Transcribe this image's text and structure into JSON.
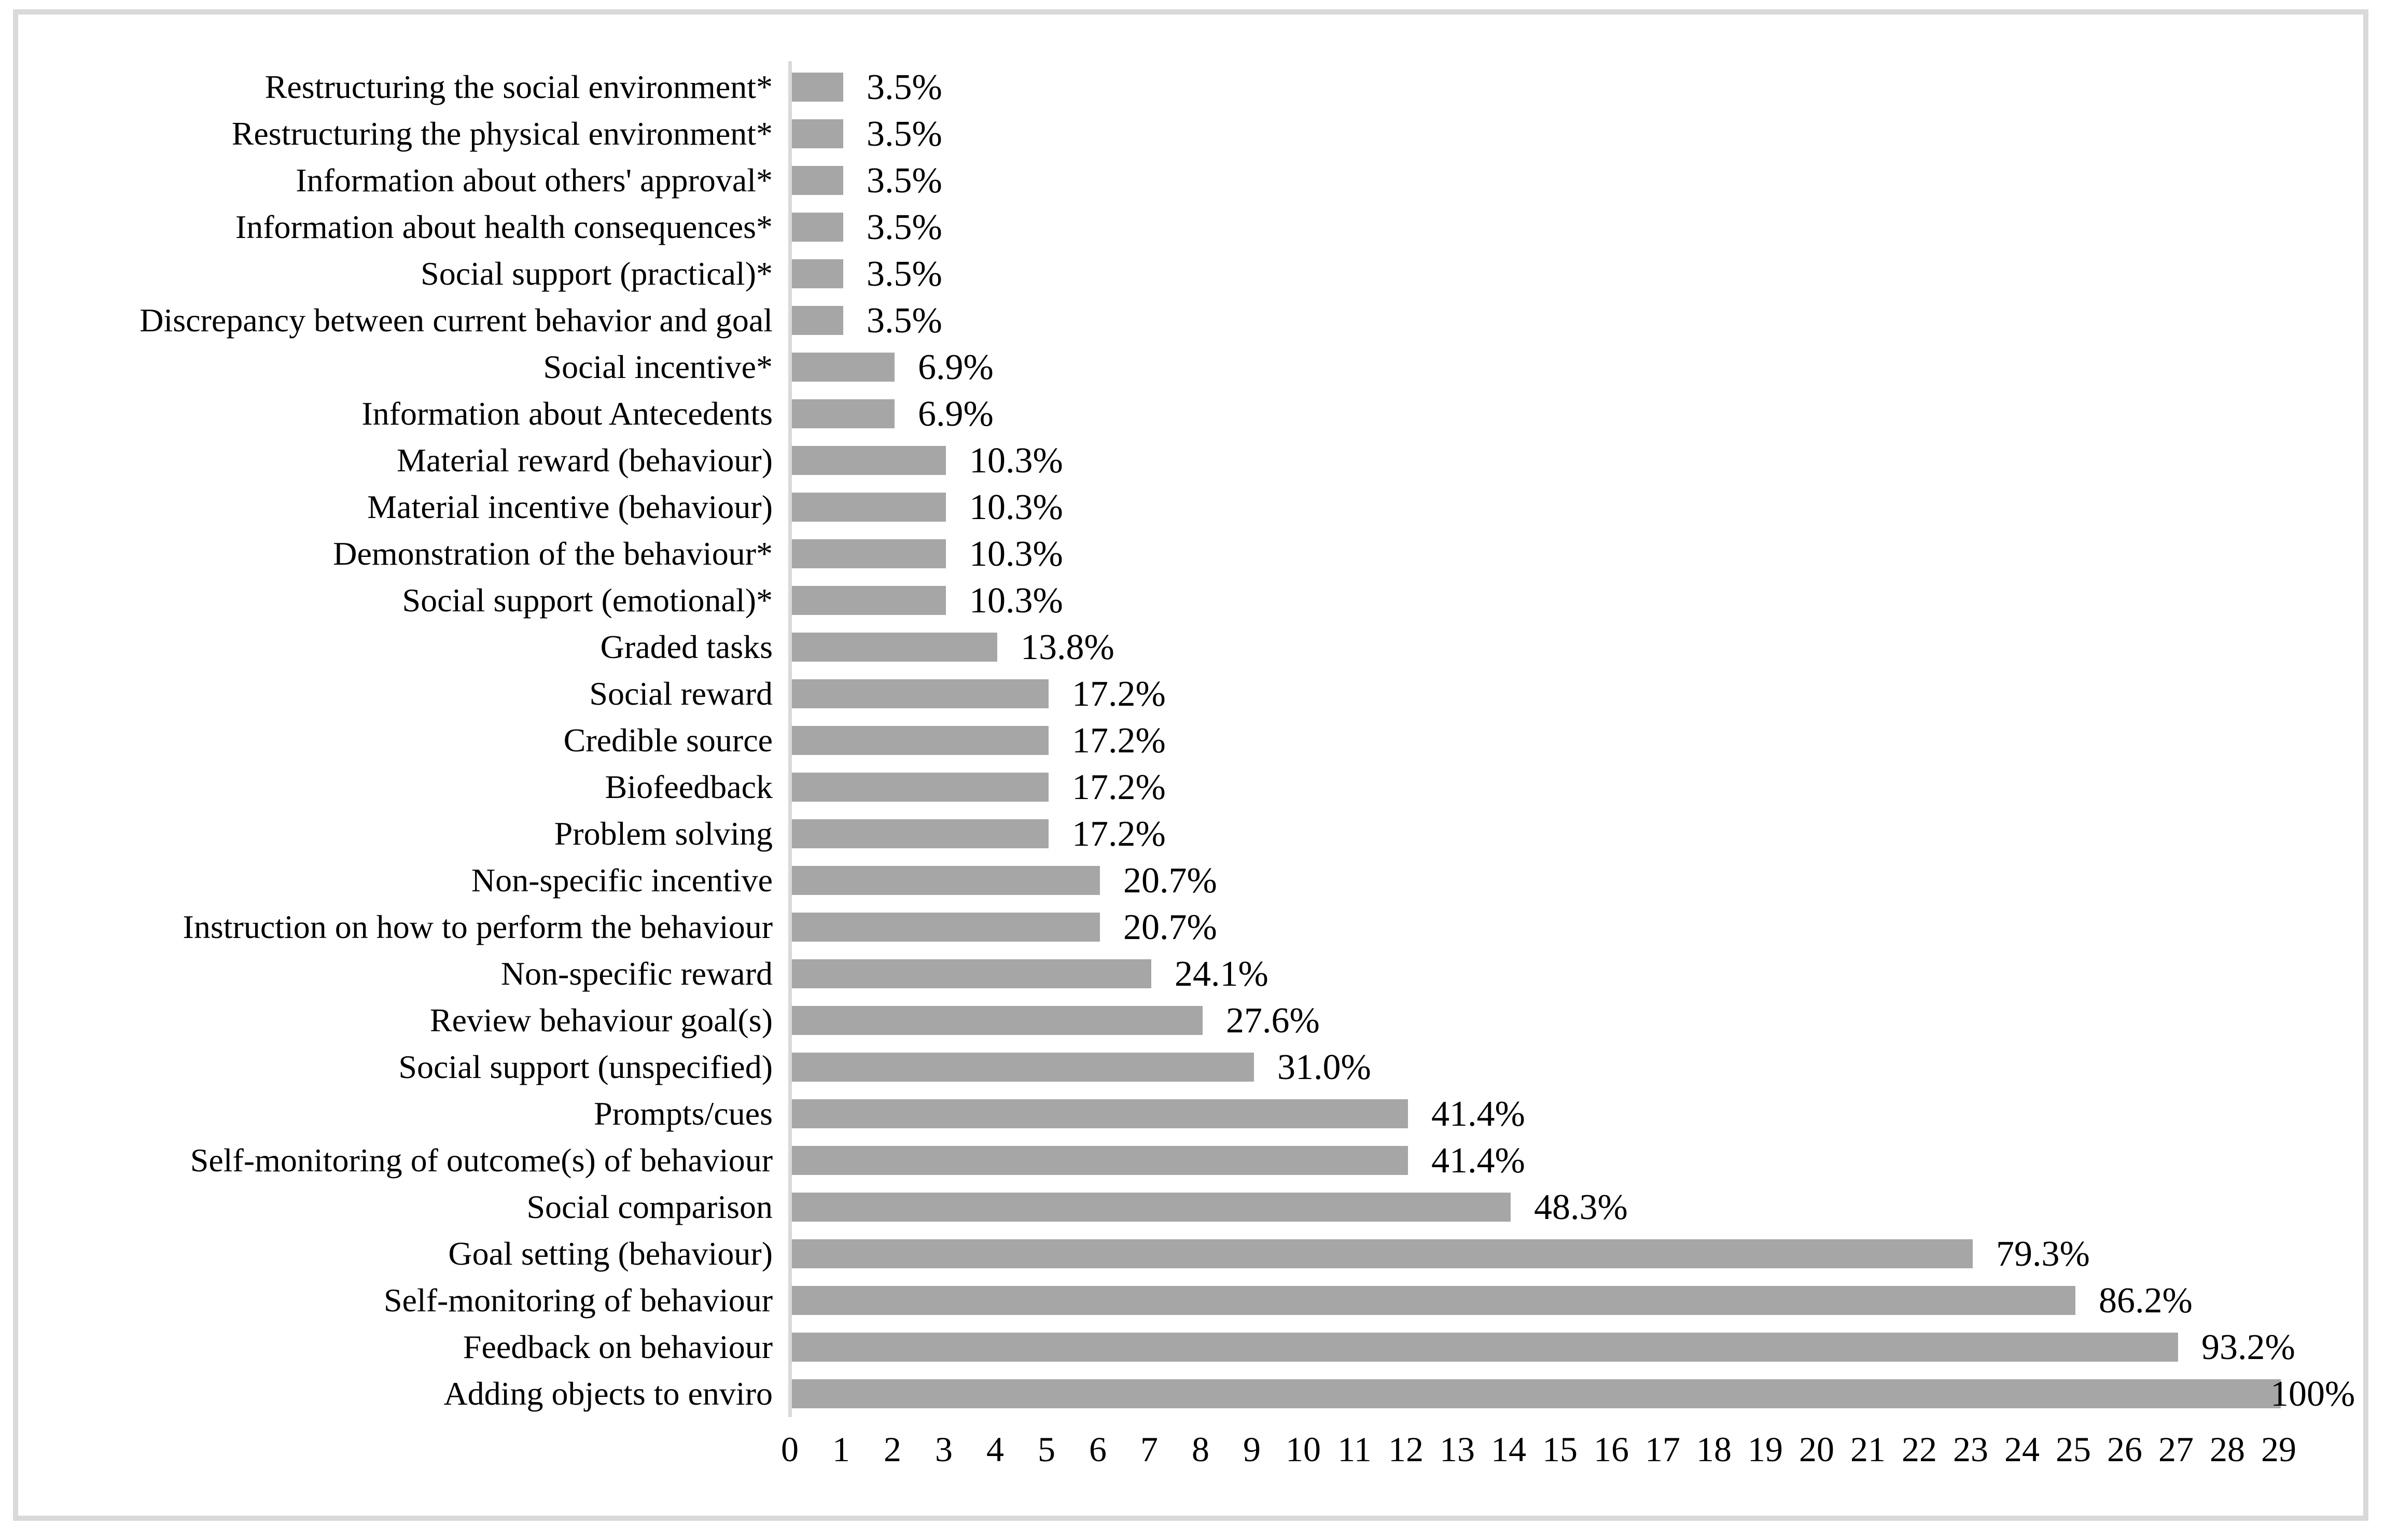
{
  "chart_data": {
    "type": "bar",
    "orientation": "horizontal",
    "title": "",
    "xlabel": "",
    "ylabel": "",
    "legend": false,
    "grid": false,
    "bar_color": "#a6a6a6",
    "axis_line_color": "#d9d9d9",
    "frame_border_color": "#d9d9d9",
    "text_color": "#000000",
    "x_axis": {
      "min": 0,
      "max": 29,
      "ticks": [
        0,
        1,
        2,
        3,
        4,
        5,
        6,
        7,
        8,
        9,
        10,
        11,
        12,
        13,
        14,
        15,
        16,
        17,
        18,
        19,
        20,
        21,
        22,
        23,
        24,
        25,
        26,
        27,
        28,
        29
      ]
    },
    "bars": [
      {
        "label": "Restructuring the social environment*",
        "count": 1,
        "percent_label": "3.5%"
      },
      {
        "label": "Restructuring the physical environment*",
        "count": 1,
        "percent_label": "3.5%"
      },
      {
        "label": "Information about others' approval*",
        "count": 1,
        "percent_label": "3.5%"
      },
      {
        "label": "Information about health consequences*",
        "count": 1,
        "percent_label": "3.5%"
      },
      {
        "label": "Social support (practical)*",
        "count": 1,
        "percent_label": "3.5%"
      },
      {
        "label": "Discrepancy between current behavior and goal",
        "count": 1,
        "percent_label": "3.5%"
      },
      {
        "label": "Social incentive*",
        "count": 2,
        "percent_label": "6.9%"
      },
      {
        "label": "Information about Antecedents",
        "count": 2,
        "percent_label": "6.9%"
      },
      {
        "label": "Material reward (behaviour)",
        "count": 3,
        "percent_label": "10.3%"
      },
      {
        "label": "Material incentive (behaviour)",
        "count": 3,
        "percent_label": "10.3%"
      },
      {
        "label": "Demonstration of the behaviour*",
        "count": 3,
        "percent_label": "10.3%"
      },
      {
        "label": "Social support (emotional)*",
        "count": 3,
        "percent_label": "10.3%"
      },
      {
        "label": "Graded tasks",
        "count": 4,
        "percent_label": "13.8%"
      },
      {
        "label": "Social reward",
        "count": 5,
        "percent_label": "17.2%"
      },
      {
        "label": "Credible source",
        "count": 5,
        "percent_label": "17.2%"
      },
      {
        "label": "Biofeedback",
        "count": 5,
        "percent_label": "17.2%"
      },
      {
        "label": "Problem solving",
        "count": 5,
        "percent_label": "17.2%"
      },
      {
        "label": "Non-specific incentive",
        "count": 6,
        "percent_label": "20.7%"
      },
      {
        "label": "Instruction on how to perform the behaviour",
        "count": 6,
        "percent_label": "20.7%"
      },
      {
        "label": "Non-specific reward",
        "count": 7,
        "percent_label": "24.1%"
      },
      {
        "label": "Review behaviour goal(s)",
        "count": 8,
        "percent_label": "27.6%"
      },
      {
        "label": "Social support (unspecified)",
        "count": 9,
        "percent_label": "31.0%"
      },
      {
        "label": "Prompts/cues",
        "count": 12,
        "percent_label": "41.4%"
      },
      {
        "label": "Self-monitoring of outcome(s) of behaviour",
        "count": 12,
        "percent_label": "41.4%"
      },
      {
        "label": "Social comparison",
        "count": 14,
        "percent_label": "48.3%"
      },
      {
        "label": "Goal setting (behaviour)",
        "count": 23,
        "percent_label": "79.3%"
      },
      {
        "label": "Self-monitoring of behaviour",
        "count": 25,
        "percent_label": "86.2%"
      },
      {
        "label": "Feedback on behaviour",
        "count": 27,
        "percent_label": "93.2%"
      },
      {
        "label": "Adding objects to enviro",
        "count": 29,
        "percent_label": "100%"
      }
    ]
  }
}
